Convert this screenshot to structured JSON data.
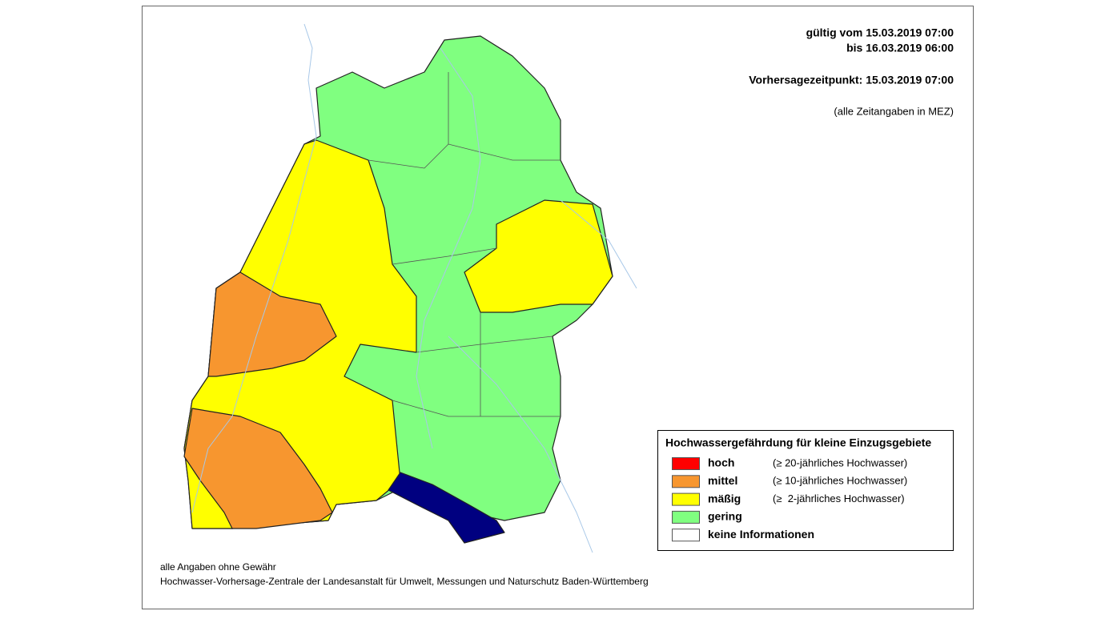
{
  "header": {
    "valid_from": "gültig vom 15.03.2019 07:00",
    "valid_to": "bis 16.03.2019 06:00",
    "forecast_time": "Vorhersagezeitpunkt: 15.03.2019 07:00",
    "timezone_note": "(alle Zeitangaben in MEZ)"
  },
  "legend": {
    "title": "Hochwassergefährdung für kleine Einzugsgebiete",
    "items": [
      {
        "label": "hoch",
        "description": "(≥ 20-jährliches Hochwasser)",
        "color": "#ff0000"
      },
      {
        "label": "mittel",
        "description": "(≥ 10-jährliches Hochwasser)",
        "color": "#f7962f"
      },
      {
        "label": "mäßig",
        "description": "(≥  2-jährliches Hochwasser)",
        "color": "#ffff00"
      },
      {
        "label": "gering",
        "color": "#80ff80"
      },
      {
        "label": "keine Informationen",
        "color": "#ffffff"
      }
    ]
  },
  "footer": {
    "disclaimer": "alle Angaben ohne Gewähr",
    "source": "Hochwasser-Vorhersage-Zentrale der Landesanstalt für Umwelt, Messungen und Naturschutz Baden-Württemberg"
  }
}
